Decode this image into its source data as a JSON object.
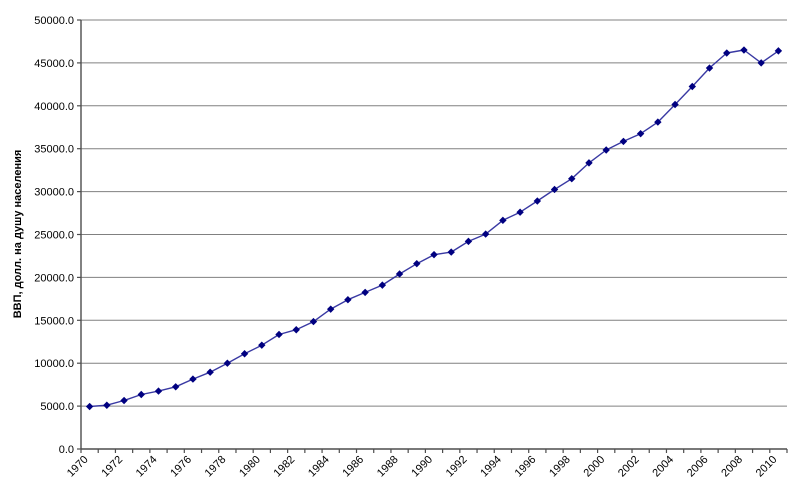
{
  "chart_data": {
    "type": "line",
    "title": "",
    "xlabel": "",
    "ylabel": "ВВП, долл. на душу населения",
    "x": [
      1970,
      1971,
      1972,
      1973,
      1974,
      1975,
      1976,
      1977,
      1978,
      1979,
      1980,
      1981,
      1982,
      1983,
      1984,
      1985,
      1986,
      1987,
      1988,
      1989,
      1990,
      1991,
      1992,
      1993,
      1994,
      1995,
      1996,
      1997,
      1998,
      1999,
      2000,
      2001,
      2002,
      2003,
      2004,
      2005,
      2006,
      2007,
      2008,
      2009,
      2010
    ],
    "values": [
      4950,
      5100,
      5650,
      6350,
      6750,
      7250,
      8150,
      8950,
      10000,
      11100,
      12100,
      13350,
      13900,
      14850,
      16300,
      17400,
      18250,
      19100,
      20400,
      21600,
      22650,
      22950,
      24200,
      25050,
      26650,
      27600,
      28900,
      30250,
      31500,
      33350,
      34850,
      35850,
      36750,
      38100,
      40150,
      42250,
      44400,
      46150,
      46500,
      45000,
      46400
    ],
    "ylim": [
      0,
      50000
    ],
    "ytick_step": 5000,
    "ytick_labels": [
      "0.0",
      "5000.0",
      "10000.0",
      "15000.0",
      "20000.0",
      "25000.0",
      "30000.0",
      "35000.0",
      "40000.0",
      "45000.0",
      "50000.0"
    ],
    "xtick_labels": [
      "1970",
      "1972",
      "1974",
      "1976",
      "1978",
      "1980",
      "1982",
      "1984",
      "1986",
      "1988",
      "1990",
      "1992",
      "1994",
      "1996",
      "1998",
      "2000",
      "2002",
      "2004",
      "2006",
      "2008",
      "2010"
    ],
    "xtick_every": 2,
    "grid": "horizontal",
    "legend": "none",
    "marker": "diamond",
    "colors": {
      "line": "#3939A3",
      "marker": "#000080",
      "gridline": "#808080",
      "axis": "#4d4d4d",
      "text": "#000000",
      "background": "#FFFFFF"
    }
  }
}
